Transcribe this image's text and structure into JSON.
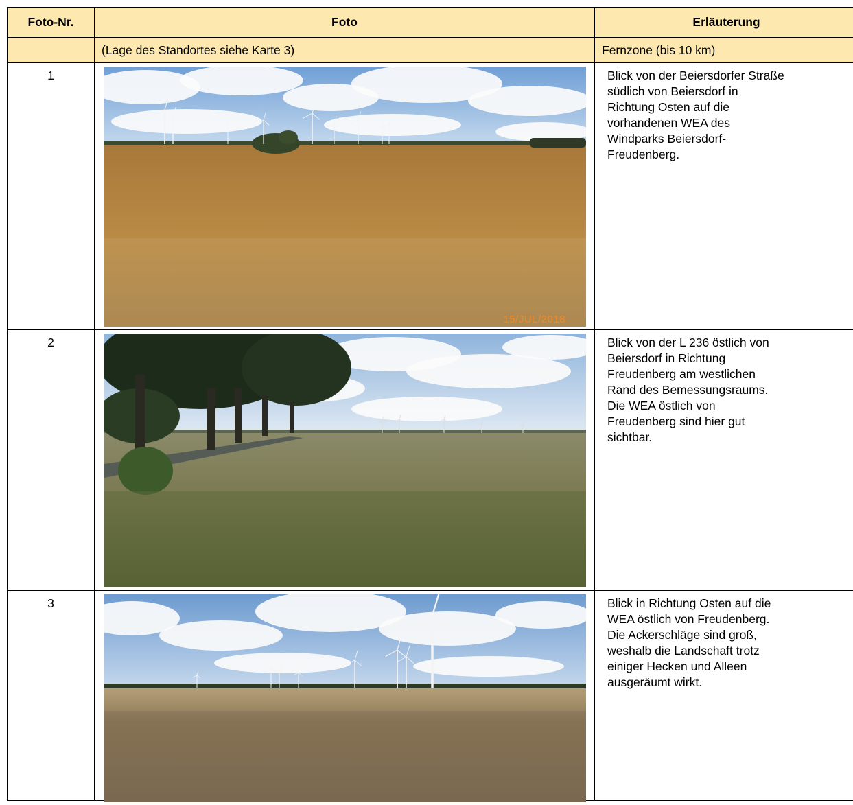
{
  "table": {
    "header": [
      "Foto-Nr.",
      "Foto",
      "Erläuterung"
    ],
    "subheader": {
      "photo": "(Lage des Standortes siehe Karte 3)",
      "description": "Fernzone (bis 10 km)"
    },
    "rows": [
      {
        "number": "1",
        "date_stamp": "15/JUL/2018",
        "description": [
          "Blick von der Beiersdorfer Straße",
          "südlich von Beiersdorf in",
          "Richtung Osten auf die",
          "vorhandenen WEA des",
          "Windparks Beiersdorf-",
          "Freudenberg."
        ]
      },
      {
        "number": "2",
        "description": [
          "Blick von der L 236 östlich von",
          "Beiersdorf in Richtung",
          "Freudenberg am westlichen",
          "Rand des Bemessungsraums.",
          "Die WEA östlich von",
          "Freudenberg sind hier gut",
          "sichtbar."
        ]
      },
      {
        "number": "3",
        "description": [
          "Blick in Richtung Osten auf die",
          "WEA östlich von Freudenberg.",
          "Die Ackerschläge sind groß,",
          "weshalb die Landschaft trotz",
          "einiger Hecken und Alleen",
          "ausgeräumt wirkt."
        ]
      }
    ]
  }
}
